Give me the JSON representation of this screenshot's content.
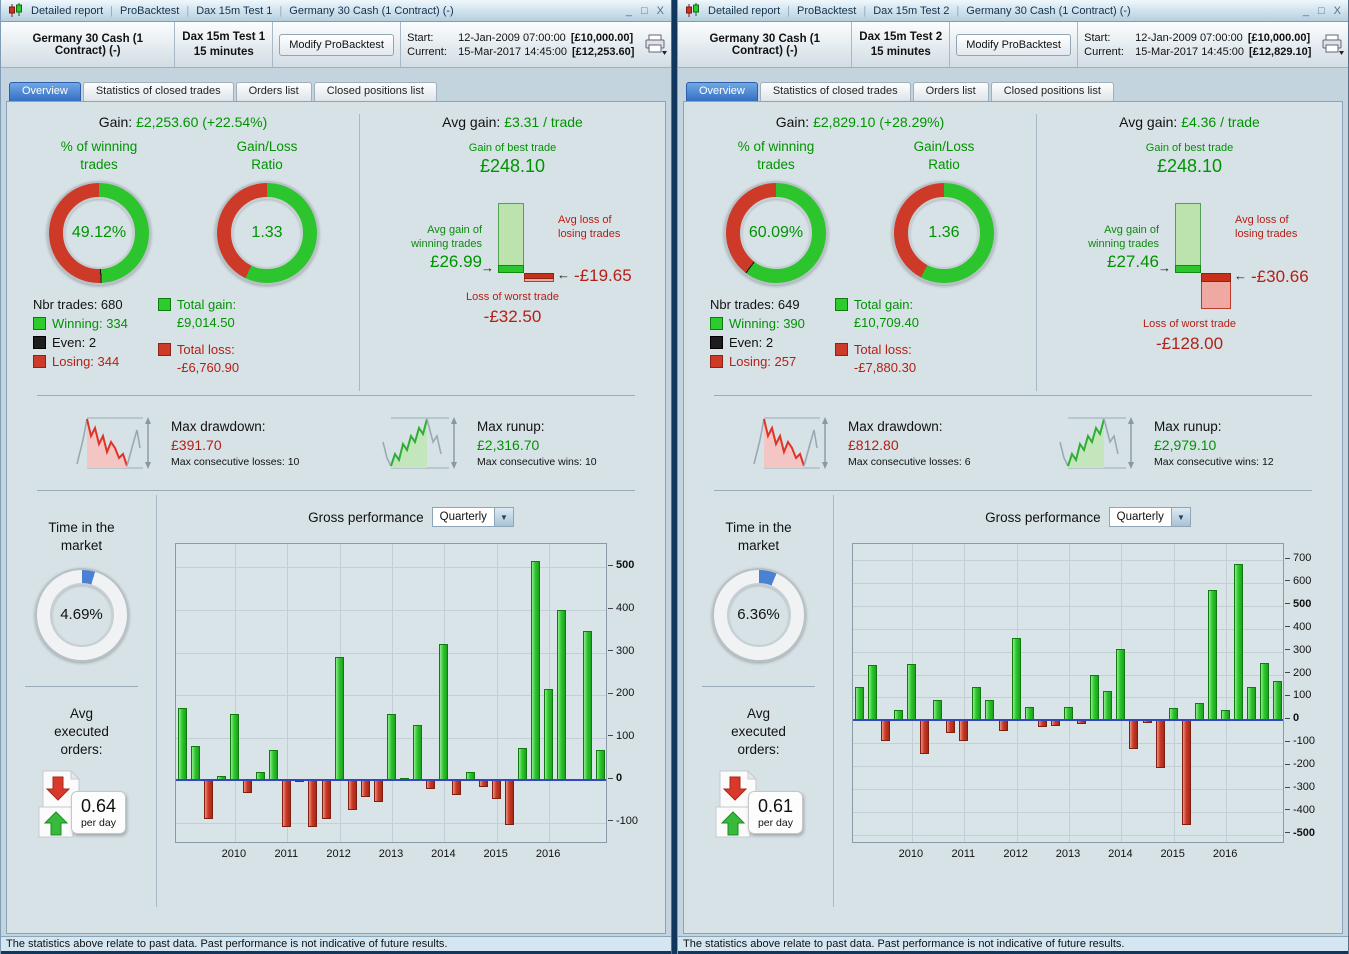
{
  "status_note": "The statistics above relate to past data. Past performance is not indicative of future results.",
  "windows": [
    {
      "titlebar": {
        "item1": "Detailed report",
        "item2": "ProBacktest",
        "item3": "Dax 15m Test 1",
        "item4": "Germany 30 Cash (1 Contract) (-)"
      },
      "header": {
        "instrument": "Germany 30 Cash (1 Contract) (-)",
        "test_name": "Dax 15m Test 1",
        "timeframe": "15 minutes",
        "modify_button": "Modify ProBacktest",
        "start_label": "Start:",
        "start_value": "12-Jan-2009 07:00:00",
        "start_equity": "[£10,000.00]",
        "current_label": "Current:",
        "current_value": "15-Mar-2017 14:45:00",
        "current_equity": "[£12,253.60]"
      },
      "tabs": [
        {
          "label": "Overview"
        },
        {
          "label": "Statistics of closed trades"
        },
        {
          "label": "Orders list"
        },
        {
          "label": "Closed positions list"
        }
      ],
      "overview": {
        "gain_label": "Gain:",
        "gain_value": "£2,253.60 (+22.54%)",
        "win_heading1": "% of winning",
        "win_heading2": "trades",
        "win_pct": "49.12%",
        "win_pct_num": 49.12,
        "ratio_heading1": "Gain/Loss",
        "ratio_heading2": "Ratio",
        "ratio_value": "1.33",
        "ratio_green_num": 57.1,
        "nbr_trades": "Nbr trades: 680",
        "winning": "Winning: 334",
        "even": "Even: 2",
        "losing": "Losing: 344",
        "total_gain_label": "Total gain:",
        "total_gain_value": "£9,014.50",
        "total_loss_label": "Total loss:",
        "total_loss_value": "-£6,760.90",
        "avg_gain_label": "Avg gain:",
        "avg_gain_value": "£3.31 / trade",
        "best_trade_label": "Gain of best trade",
        "best_trade_value": "£248.10",
        "avg_win_label1": "Avg gain of",
        "avg_win_label2": "winning trades",
        "avg_win_value": "£26.99",
        "avg_loss_label1": "Avg loss of",
        "avg_loss_label2": "losing trades",
        "avg_loss_value": "-£19.65",
        "worst_trade_label": "Loss of worst trade",
        "worst_trade_value": "-£32.50",
        "minichart": {
          "best": 248.1,
          "avg_win": 26.99,
          "avg_loss": 19.65,
          "worst": 32.5
        },
        "max_dd_label": "Max drawdown:",
        "max_dd_value": "£391.70",
        "max_dd_consec": "Max consecutive losses: 10",
        "max_ru_label": "Max runup:",
        "max_ru_value": "£2,316.70",
        "max_ru_consec": "Max consecutive wins: 10",
        "tim_heading1": "Time in the",
        "tim_heading2": "market",
        "tim_value": "4.69%",
        "tim_num": 4.69,
        "ord_heading1": "Avg",
        "ord_heading2": "executed",
        "ord_heading3": "orders:",
        "ord_value": "0.64",
        "ord_unit": "per day",
        "gross_label": "Gross performance",
        "period_selected": "Quarterly"
      }
    },
    {
      "titlebar": {
        "item1": "Detailed report",
        "item2": "ProBacktest",
        "item3": "Dax 15m Test 2",
        "item4": "Germany 30 Cash (1 Contract) (-)"
      },
      "header": {
        "instrument": "Germany 30 Cash (1 Contract) (-)",
        "test_name": "Dax 15m Test 2",
        "timeframe": "15 minutes",
        "modify_button": "Modify ProBacktest",
        "start_label": "Start:",
        "start_value": "12-Jan-2009 07:00:00",
        "start_equity": "[£10,000.00]",
        "current_label": "Current:",
        "current_value": "15-Mar-2017 14:45:00",
        "current_equity": "[£12,829.10]"
      },
      "tabs": [
        {
          "label": "Overview"
        },
        {
          "label": "Statistics of closed trades"
        },
        {
          "label": "Orders list"
        },
        {
          "label": "Closed positions list"
        }
      ],
      "overview": {
        "gain_label": "Gain:",
        "gain_value": "£2,829.10 (+28.29%)",
        "win_heading1": "% of winning",
        "win_heading2": "trades",
        "win_pct": "60.09%",
        "win_pct_num": 60.09,
        "ratio_heading1": "Gain/Loss",
        "ratio_heading2": "Ratio",
        "ratio_value": "1.36",
        "ratio_green_num": 57.6,
        "nbr_trades": "Nbr trades: 649",
        "winning": "Winning: 390",
        "even": "Even: 2",
        "losing": "Losing: 257",
        "total_gain_label": "Total gain:",
        "total_gain_value": "£10,709.40",
        "total_loss_label": "Total loss:",
        "total_loss_value": "-£7,880.30",
        "avg_gain_label": "Avg gain:",
        "avg_gain_value": "£4.36 / trade",
        "best_trade_label": "Gain of best trade",
        "best_trade_value": "£248.10",
        "avg_win_label1": "Avg gain of",
        "avg_win_label2": "winning trades",
        "avg_win_value": "£27.46",
        "avg_loss_label1": "Avg loss of",
        "avg_loss_label2": "losing trades",
        "avg_loss_value": "-£30.66",
        "worst_trade_label": "Loss of worst trade",
        "worst_trade_value": "-£128.00",
        "minichart": {
          "best": 248.1,
          "avg_win": 27.46,
          "avg_loss": 30.66,
          "worst": 128.0
        },
        "max_dd_label": "Max drawdown:",
        "max_dd_value": "£812.80",
        "max_dd_consec": "Max consecutive losses: 6",
        "max_ru_label": "Max runup:",
        "max_ru_value": "£2,979.10",
        "max_ru_consec": "Max consecutive wins: 12",
        "tim_heading1": "Time in the",
        "tim_heading2": "market",
        "tim_value": "6.36%",
        "tim_num": 6.36,
        "ord_heading1": "Avg",
        "ord_heading2": "executed",
        "ord_heading3": "orders:",
        "ord_value": "0.61",
        "ord_unit": "per day",
        "gross_label": "Gross performance",
        "period_selected": "Quarterly"
      }
    }
  ],
  "chart_data": [
    {
      "type": "bar",
      "title": "Gross performance (Quarterly) — Dax 15m Test 1",
      "xlabel": "",
      "ylabel": "",
      "categories": [
        "2009 Q1",
        "2009 Q2",
        "2009 Q3",
        "2009 Q4",
        "2010 Q1",
        "2010 Q2",
        "2010 Q3",
        "2010 Q4",
        "2011 Q1",
        "2011 Q2",
        "2011 Q3",
        "2011 Q4",
        "2012 Q1",
        "2012 Q2",
        "2012 Q3",
        "2012 Q4",
        "2013 Q1",
        "2013 Q2",
        "2013 Q3",
        "2013 Q4",
        "2014 Q1",
        "2014 Q2",
        "2014 Q3",
        "2014 Q4",
        "2015 Q1",
        "2015 Q2",
        "2015 Q3",
        "2015 Q4",
        "2016 Q1",
        "2016 Q2",
        "2016 Q3",
        "2016 Q4",
        "2017 Q1"
      ],
      "values": [
        170,
        80,
        -90,
        10,
        155,
        -30,
        20,
        70,
        -110,
        -5,
        -110,
        -90,
        290,
        -70,
        -40,
        -50,
        155,
        5,
        130,
        -20,
        320,
        -35,
        20,
        -15,
        -45,
        -105,
        75,
        515,
        215,
        400,
        0,
        350,
        70
      ],
      "year_ticks": [
        {
          "label": "2010",
          "index": 4
        },
        {
          "label": "2011",
          "index": 8
        },
        {
          "label": "2012",
          "index": 12
        },
        {
          "label": "2013",
          "index": 16
        },
        {
          "label": "2014",
          "index": 20
        },
        {
          "label": "2015",
          "index": 24
        },
        {
          "label": "2016",
          "index": 28
        }
      ],
      "y_ticks": [
        500,
        400,
        300,
        200,
        100,
        0,
        -100
      ],
      "ylim": [
        -150,
        555
      ],
      "grid": true,
      "legend": false,
      "positive_color": "#2ec82e",
      "negative_color": "#cd3a27",
      "zero_line_color": "#3347c2"
    },
    {
      "type": "bar",
      "title": "Gross performance (Quarterly) — Dax 15m Test 2",
      "xlabel": "",
      "ylabel": "",
      "categories": [
        "2009 Q1",
        "2009 Q2",
        "2009 Q3",
        "2009 Q4",
        "2010 Q1",
        "2010 Q2",
        "2010 Q3",
        "2010 Q4",
        "2011 Q1",
        "2011 Q2",
        "2011 Q3",
        "2011 Q4",
        "2012 Q1",
        "2012 Q2",
        "2012 Q3",
        "2012 Q4",
        "2013 Q1",
        "2013 Q2",
        "2013 Q3",
        "2013 Q4",
        "2014 Q1",
        "2014 Q2",
        "2014 Q3",
        "2014 Q4",
        "2015 Q1",
        "2015 Q2",
        "2015 Q3",
        "2015 Q4",
        "2016 Q1",
        "2016 Q2",
        "2016 Q3",
        "2016 Q4",
        "2017 Q1"
      ],
      "values": [
        145,
        240,
        -90,
        45,
        245,
        -145,
        90,
        -55,
        -90,
        145,
        90,
        -45,
        360,
        60,
        -30,
        -25,
        60,
        -15,
        200,
        130,
        310,
        -125,
        -10,
        -210,
        55,
        -455,
        75,
        570,
        45,
        685,
        145,
        250,
        170
      ],
      "year_ticks": [
        {
          "label": "2010",
          "index": 4
        },
        {
          "label": "2011",
          "index": 8
        },
        {
          "label": "2012",
          "index": 12
        },
        {
          "label": "2013",
          "index": 16
        },
        {
          "label": "2014",
          "index": 20
        },
        {
          "label": "2015",
          "index": 24
        },
        {
          "label": "2016",
          "index": 28
        }
      ],
      "y_ticks": [
        700,
        600,
        500,
        400,
        300,
        200,
        100,
        0,
        -100,
        -200,
        -300,
        -400,
        -500
      ],
      "ylim": [
        -540,
        770
      ],
      "grid": true,
      "legend": false,
      "positive_color": "#2ec82e",
      "negative_color": "#cd3a27",
      "zero_line_color": "#3347c2"
    }
  ]
}
